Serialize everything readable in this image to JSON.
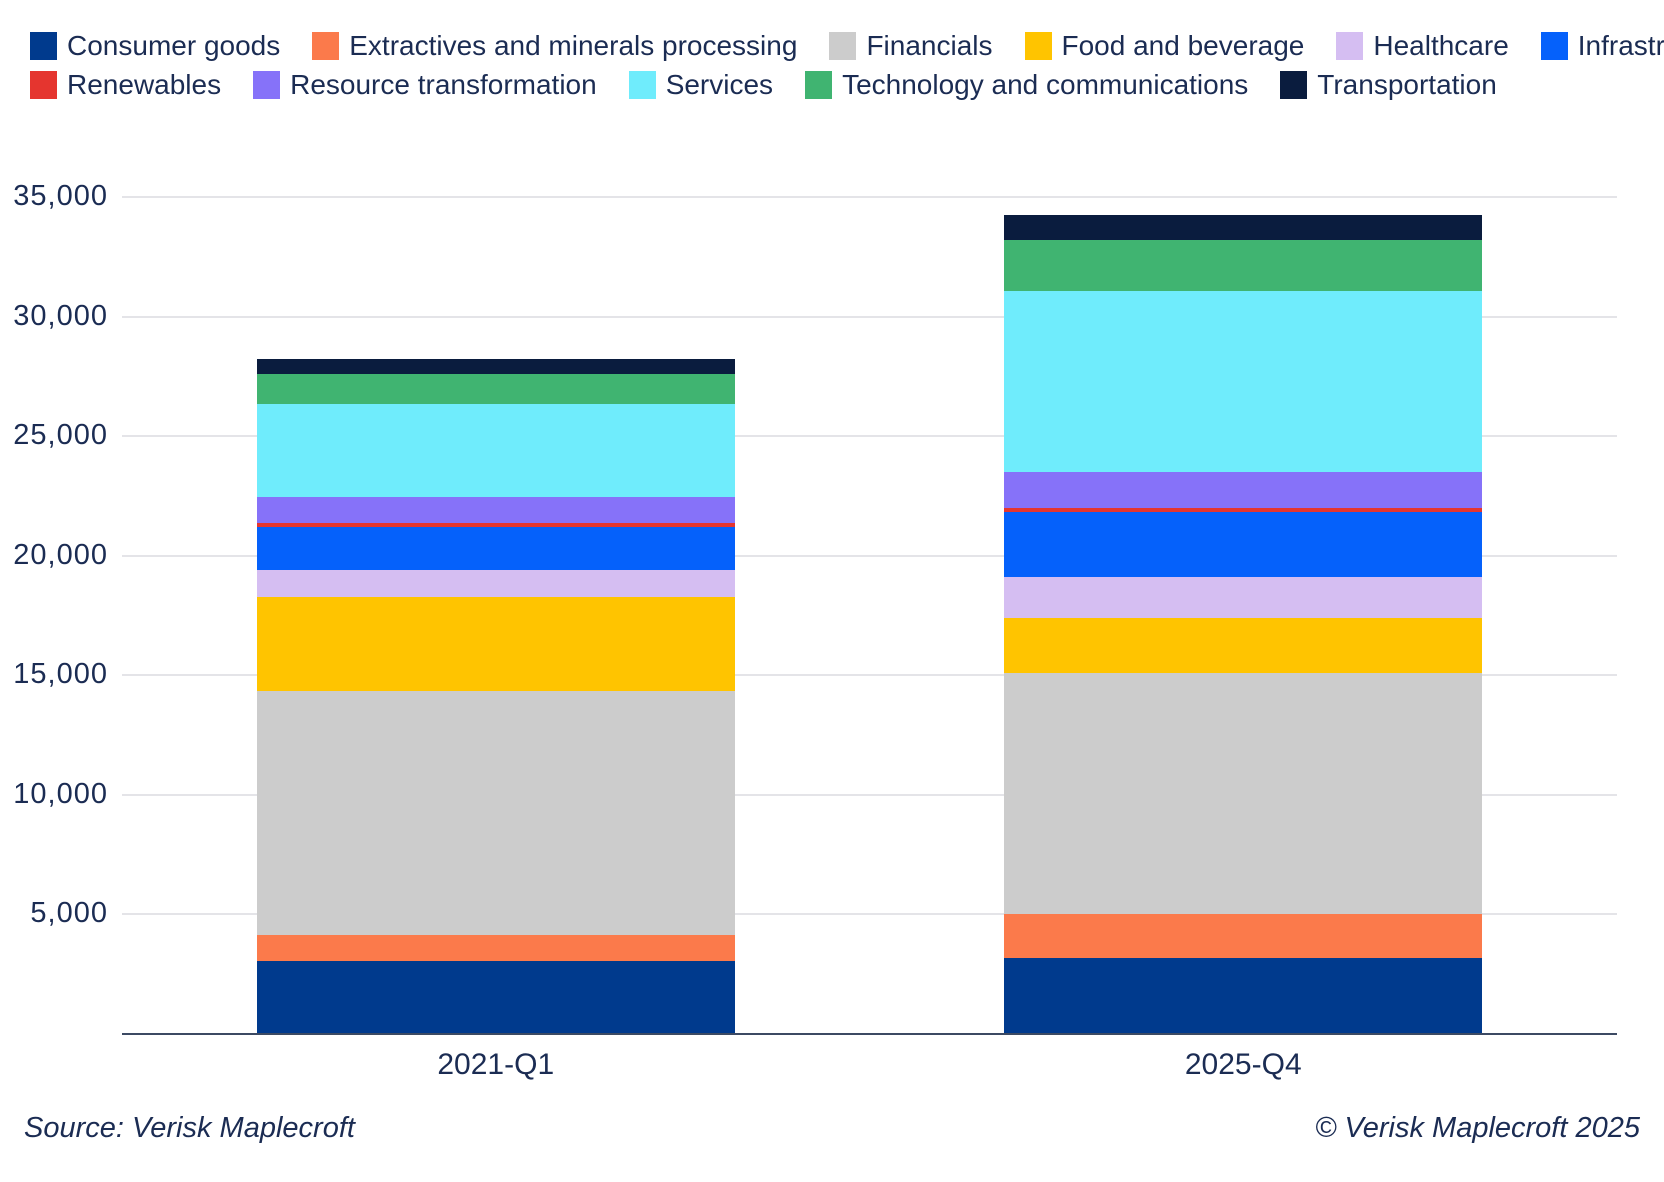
{
  "chart_data": {
    "type": "bar",
    "stacked": true,
    "title": "",
    "xlabel": "",
    "ylabel": "",
    "categories": [
      "2021-Q1",
      "2025-Q4"
    ],
    "series": [
      {
        "name": "Consumer goods",
        "color": "#003a8d",
        "values": [
          3050,
          3160
        ]
      },
      {
        "name": "Extractives and minerals processing",
        "color": "#fb7a4b",
        "values": [
          1090,
          1860
        ]
      },
      {
        "name": "Financials",
        "color": "#cccccc",
        "values": [
          10220,
          10060
        ]
      },
      {
        "name": "Food and beverage",
        "color": "#ffc400",
        "values": [
          3930,
          2320
        ]
      },
      {
        "name": "Healthcare",
        "color": "#d5bef2",
        "values": [
          1120,
          1725
        ]
      },
      {
        "name": "Infrastructure",
        "color": "#0561fb",
        "values": [
          1800,
          2695
        ]
      },
      {
        "name": "Renewables",
        "color": "#e5352f",
        "values": [
          155,
          170
        ]
      },
      {
        "name": "Resource transformation",
        "color": "#8672f9",
        "values": [
          1070,
          1490
        ]
      },
      {
        "name": "Services",
        "color": "#6fecfc",
        "values": [
          3910,
          7600
        ]
      },
      {
        "name": "Technology and communications",
        "color": "#40b471",
        "values": [
          1260,
          2105
        ]
      },
      {
        "name": "Transportation",
        "color": "#0a1c3e",
        "values": [
          640,
          1075
        ]
      }
    ],
    "totals": [
      28245,
      34260
    ],
    "ylim": [
      0,
      35000
    ],
    "yticks": [
      5000,
      10000,
      15000,
      20000,
      25000,
      30000,
      35000
    ],
    "ytick_labels": [
      "5,000",
      "10,000",
      "15,000",
      "20,000",
      "25,000",
      "30,000",
      "35,000"
    ],
    "grid": "horizontal",
    "legend_position": "top",
    "legend_rows": [
      6,
      5
    ]
  },
  "footer": {
    "source": "Source: Verisk Maplecroft",
    "copyright": "© Verisk Maplecroft 2025"
  },
  "colors": {
    "text": "#1b2c53",
    "gridline": "#e4e4e8",
    "axis_line": "#3c4a63",
    "background": "#ffffff"
  }
}
